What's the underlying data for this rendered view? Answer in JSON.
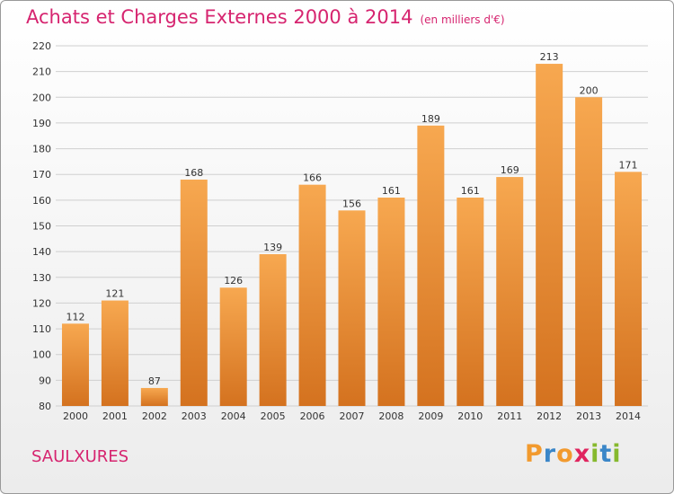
{
  "title": "Achats et Charges Externes 2000 à 2014",
  "subtitle": "(en milliers d'€)",
  "location": "SAULXURES",
  "logo": {
    "letters": [
      "P",
      "r",
      "o",
      "x",
      "i",
      "t",
      "i"
    ],
    "colors": [
      "#f29a2e",
      "#3a86c8",
      "#f29a2e",
      "#e0245e",
      "#86b92e",
      "#3a86c8",
      "#86b92e"
    ]
  },
  "colors": {
    "bar_light": "#f7a850",
    "bar_dark": "#d4721f",
    "title": "#d6246f"
  },
  "chart_data": {
    "type": "bar",
    "title": "Achats et Charges Externes 2000 à 2014",
    "subtitle": "(en milliers d'€)",
    "xlabel": "",
    "ylabel": "",
    "categories": [
      "2000",
      "2001",
      "2002",
      "2003",
      "2004",
      "2005",
      "2006",
      "2007",
      "2008",
      "2009",
      "2010",
      "2011",
      "2012",
      "2013",
      "2014"
    ],
    "values": [
      112,
      121,
      87,
      168,
      126,
      139,
      166,
      156,
      161,
      189,
      161,
      169,
      213,
      200,
      171
    ],
    "ylim": [
      80,
      220
    ],
    "yticks": [
      80,
      90,
      100,
      110,
      120,
      130,
      140,
      150,
      160,
      170,
      180,
      190,
      200,
      210,
      220
    ],
    "grid": true,
    "legend": "none"
  }
}
